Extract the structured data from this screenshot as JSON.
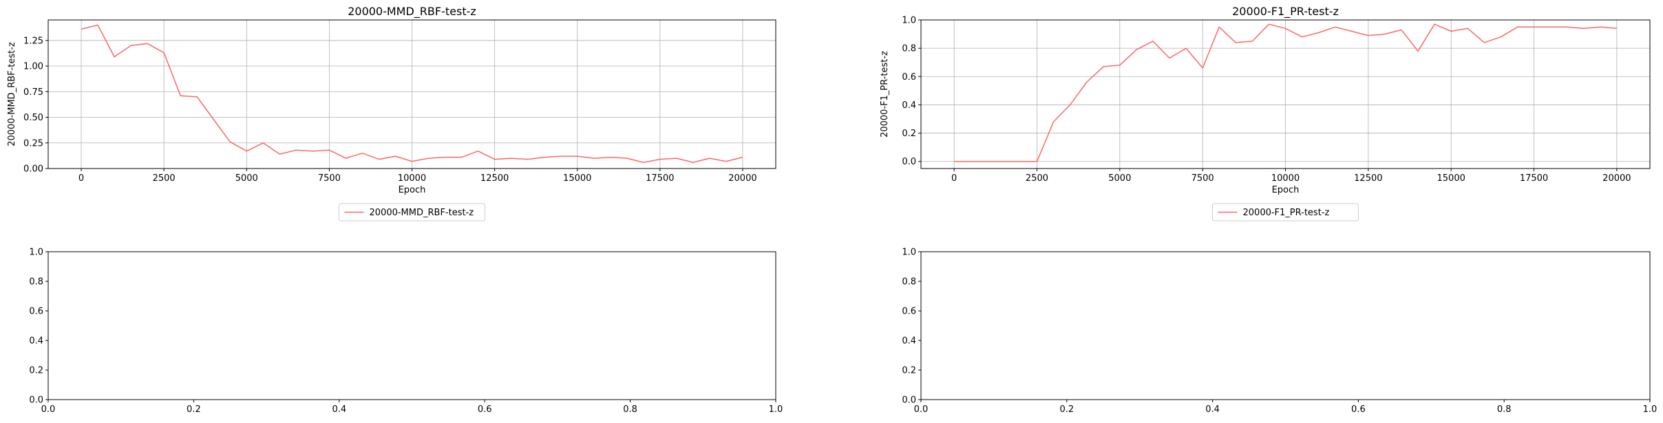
{
  "chart_data": [
    {
      "type": "line",
      "title": "20000-MMD_RBF-test-z",
      "xlabel": "Epoch",
      "ylabel": "20000-MMD_RBF-test-z",
      "xlim": [
        -1000,
        21000
      ],
      "ylim": [
        0,
        1.45
      ],
      "grid": true,
      "legend": "below",
      "xticks": [
        0,
        2500,
        5000,
        7500,
        10000,
        12500,
        15000,
        17500,
        20000
      ],
      "xtick_labels": [
        "0",
        "2500",
        "5000",
        "7500",
        "10000",
        "12500",
        "15000",
        "17500",
        "20000"
      ],
      "yticks": [
        0,
        0.25,
        0.5,
        0.75,
        1.0,
        1.25
      ],
      "ytick_labels": [
        "0.00",
        "0.25",
        "0.50",
        "0.75",
        "1.00",
        "1.25"
      ],
      "series": [
        {
          "name": "20000-MMD_RBF-test-z",
          "color": "#ff6666",
          "x": [
            0,
            500,
            1000,
            1500,
            2000,
            2500,
            3000,
            3500,
            4000,
            4500,
            5000,
            5500,
            6000,
            6500,
            7000,
            7500,
            8000,
            8500,
            9000,
            9500,
            10000,
            10500,
            11000,
            11500,
            12000,
            12500,
            13000,
            13500,
            14000,
            14500,
            15000,
            15500,
            16000,
            16500,
            17000,
            17500,
            18000,
            18500,
            19000,
            19500,
            20000
          ],
          "y": [
            1.36,
            1.4,
            1.09,
            1.2,
            1.22,
            1.13,
            0.71,
            0.7,
            0.48,
            0.26,
            0.17,
            0.25,
            0.14,
            0.18,
            0.17,
            0.18,
            0.1,
            0.15,
            0.09,
            0.12,
            0.07,
            0.1,
            0.11,
            0.11,
            0.17,
            0.09,
            0.1,
            0.09,
            0.11,
            0.12,
            0.12,
            0.1,
            0.11,
            0.1,
            0.06,
            0.09,
            0.1,
            0.06,
            0.1,
            0.07,
            0.11
          ]
        }
      ]
    },
    {
      "type": "line",
      "title": "20000-F1_PR-test-z",
      "xlabel": "Epoch",
      "ylabel": "20000-F1_PR-test-z",
      "xlim": [
        -1000,
        21000
      ],
      "ylim": [
        -0.05,
        1.0
      ],
      "grid": true,
      "legend": "below",
      "xticks": [
        0,
        2500,
        5000,
        7500,
        10000,
        12500,
        15000,
        17500,
        20000
      ],
      "xtick_labels": [
        "0",
        "2500",
        "5000",
        "7500",
        "10000",
        "12500",
        "15000",
        "17500",
        "20000"
      ],
      "yticks": [
        0,
        0.2,
        0.4,
        0.6,
        0.8,
        1.0
      ],
      "ytick_labels": [
        "0.0",
        "0.2",
        "0.4",
        "0.6",
        "0.8",
        "1.0"
      ],
      "series": [
        {
          "name": "20000-F1_PR-test-z",
          "color": "#ff6666",
          "x": [
            0,
            500,
            1000,
            1500,
            2000,
            2500,
            3000,
            3500,
            4000,
            4500,
            5000,
            5500,
            6000,
            6500,
            7000,
            7500,
            8000,
            8500,
            9000,
            9500,
            10000,
            10500,
            11000,
            11500,
            12000,
            12500,
            13000,
            13500,
            14000,
            14500,
            15000,
            15500,
            16000,
            16500,
            17000,
            17500,
            18000,
            18500,
            19000,
            19500,
            20000
          ],
          "y": [
            0.0,
            0.0,
            0.0,
            0.0,
            0.0,
            0.0,
            0.28,
            0.4,
            0.56,
            0.67,
            0.68,
            0.79,
            0.85,
            0.73,
            0.8,
            0.66,
            0.95,
            0.84,
            0.85,
            0.97,
            0.94,
            0.88,
            0.91,
            0.95,
            0.92,
            0.89,
            0.9,
            0.93,
            0.78,
            0.97,
            0.92,
            0.94,
            0.84,
            0.88,
            0.95,
            0.95,
            0.95,
            0.95,
            0.94,
            0.95,
            0.94
          ]
        }
      ]
    },
    {
      "type": "line",
      "title": "",
      "xlabel": "",
      "ylabel": "",
      "xlim": [
        0,
        1
      ],
      "ylim": [
        0,
        1
      ],
      "grid": false,
      "xticks": [
        0,
        0.2,
        0.4,
        0.6,
        0.8,
        1.0
      ],
      "xtick_labels": [
        "0.0",
        "0.2",
        "0.4",
        "0.6",
        "0.8",
        "1.0"
      ],
      "yticks": [
        0,
        0.2,
        0.4,
        0.6,
        0.8,
        1.0
      ],
      "ytick_labels": [
        "0.0",
        "0.2",
        "0.4",
        "0.6",
        "0.8",
        "1.0"
      ],
      "series": []
    },
    {
      "type": "line",
      "title": "",
      "xlabel": "",
      "ylabel": "",
      "xlim": [
        0,
        1
      ],
      "ylim": [
        0,
        1
      ],
      "grid": false,
      "xticks": [
        0,
        0.2,
        0.4,
        0.6,
        0.8,
        1.0
      ],
      "xtick_labels": [
        "0.0",
        "0.2",
        "0.4",
        "0.6",
        "0.8",
        "1.0"
      ],
      "yticks": [
        0,
        0.2,
        0.4,
        0.6,
        0.8,
        1.0
      ],
      "ytick_labels": [
        "0.0",
        "0.2",
        "0.4",
        "0.6",
        "0.8",
        "1.0"
      ],
      "series": []
    }
  ]
}
